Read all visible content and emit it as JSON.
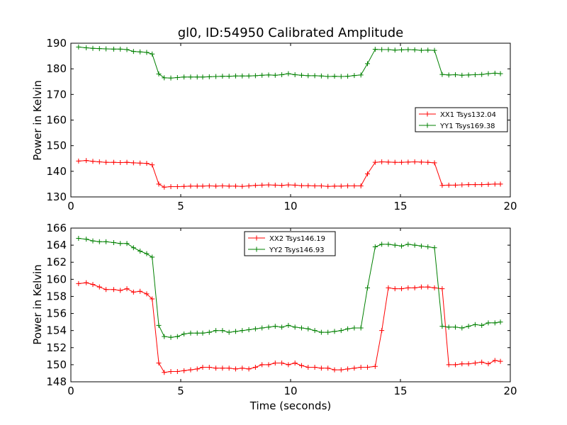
{
  "colors": {
    "xx": "#ff0000",
    "yy": "#008000"
  },
  "chart_data": [
    {
      "type": "line",
      "title": "gl0, ID:54950 Calibrated Amplitude",
      "xlabel": "",
      "ylabel": "Power in Kelvin",
      "xlim": [
        0,
        20
      ],
      "ylim": [
        130,
        190
      ],
      "xticks": [
        "0",
        "5",
        "10",
        "15",
        "20"
      ],
      "yticks": [
        "130",
        "140",
        "150",
        "160",
        "170",
        "180",
        "190"
      ],
      "grid": false,
      "legend_position": "center-right",
      "x": [
        0.35,
        0.7,
        1.0,
        1.3,
        1.6,
        1.95,
        2.25,
        2.55,
        2.85,
        3.15,
        3.45,
        3.7,
        4.0,
        4.25,
        4.55,
        4.85,
        5.15,
        5.45,
        5.75,
        6.0,
        6.3,
        6.6,
        6.9,
        7.2,
        7.5,
        7.8,
        8.1,
        8.4,
        8.7,
        9.0,
        9.3,
        9.6,
        9.9,
        10.2,
        10.5,
        10.8,
        11.1,
        11.4,
        11.7,
        12.0,
        12.3,
        12.6,
        12.9,
        13.2,
        13.5,
        13.85,
        14.15,
        14.45,
        14.75,
        15.05,
        15.35,
        15.65,
        15.95,
        16.25,
        16.55,
        16.9,
        17.2,
        17.5,
        17.8,
        18.1,
        18.4,
        18.7,
        19.0,
        19.3,
        19.55
      ],
      "series": [
        {
          "name": "XX1 Tsys132.04",
          "color": "#ff0000",
          "values": [
            144.0,
            144.2,
            143.9,
            143.7,
            143.5,
            143.5,
            143.4,
            143.5,
            143.3,
            143.2,
            143.1,
            142.5,
            135.0,
            133.8,
            134.0,
            134.0,
            134.1,
            134.2,
            134.2,
            134.2,
            134.3,
            134.2,
            134.3,
            134.2,
            134.2,
            134.1,
            134.3,
            134.5,
            134.6,
            134.7,
            134.6,
            134.5,
            134.7,
            134.6,
            134.4,
            134.4,
            134.3,
            134.3,
            134.1,
            134.2,
            134.2,
            134.3,
            134.3,
            134.3,
            139.0,
            143.5,
            143.7,
            143.6,
            143.5,
            143.5,
            143.6,
            143.7,
            143.6,
            143.5,
            143.3,
            134.5,
            134.6,
            134.6,
            134.7,
            134.8,
            134.8,
            134.8,
            134.9,
            135.0,
            135.0
          ]
        },
        {
          "name": "YY1 Tsys169.38",
          "color": "#008000",
          "values": [
            188.5,
            188.2,
            188.0,
            187.9,
            187.8,
            187.7,
            187.7,
            187.5,
            186.8,
            186.6,
            186.4,
            185.8,
            178.0,
            176.5,
            176.4,
            176.6,
            176.8,
            176.8,
            176.8,
            176.8,
            176.9,
            177.0,
            177.1,
            177.1,
            177.2,
            177.2,
            177.2,
            177.3,
            177.5,
            177.6,
            177.5,
            177.7,
            178.1,
            177.7,
            177.5,
            177.3,
            177.3,
            177.2,
            177.0,
            177.1,
            177.0,
            177.1,
            177.4,
            177.6,
            182.0,
            187.6,
            187.5,
            187.5,
            187.3,
            187.4,
            187.5,
            187.4,
            187.2,
            187.3,
            187.2,
            177.8,
            177.6,
            177.7,
            177.5,
            177.6,
            177.7,
            177.8,
            178.1,
            178.3,
            178.1
          ]
        }
      ]
    },
    {
      "type": "line",
      "title": "",
      "xlabel": "Time (seconds)",
      "ylabel": "Power in Kelvin",
      "xlim": [
        0,
        20
      ],
      "ylim": [
        148,
        166
      ],
      "xticks": [
        "0",
        "5",
        "10",
        "15",
        "20"
      ],
      "yticks": [
        "148",
        "150",
        "152",
        "154",
        "156",
        "158",
        "160",
        "162",
        "164",
        "166"
      ],
      "grid": false,
      "legend_position": "upper-center",
      "x": [
        0.35,
        0.7,
        1.0,
        1.3,
        1.6,
        1.95,
        2.25,
        2.55,
        2.85,
        3.15,
        3.45,
        3.7,
        4.0,
        4.25,
        4.55,
        4.85,
        5.15,
        5.45,
        5.75,
        6.0,
        6.3,
        6.6,
        6.9,
        7.2,
        7.5,
        7.8,
        8.1,
        8.4,
        8.7,
        9.0,
        9.3,
        9.6,
        9.9,
        10.2,
        10.5,
        10.8,
        11.1,
        11.4,
        11.7,
        12.0,
        12.3,
        12.6,
        12.9,
        13.2,
        13.5,
        13.85,
        14.15,
        14.45,
        14.75,
        15.05,
        15.35,
        15.65,
        15.95,
        16.25,
        16.55,
        16.9,
        17.2,
        17.5,
        17.8,
        18.1,
        18.4,
        18.7,
        19.0,
        19.3,
        19.55
      ],
      "series": [
        {
          "name": "XX2 Tsys146.19",
          "color": "#ff0000",
          "values": [
            159.5,
            159.6,
            159.4,
            159.1,
            158.8,
            158.8,
            158.7,
            158.9,
            158.5,
            158.6,
            158.3,
            157.7,
            150.2,
            149.1,
            149.2,
            149.2,
            149.3,
            149.4,
            149.5,
            149.7,
            149.7,
            149.6,
            149.6,
            149.6,
            149.5,
            149.6,
            149.5,
            149.7,
            150.0,
            150.0,
            150.2,
            150.2,
            150.0,
            150.2,
            149.9,
            149.7,
            149.7,
            149.6,
            149.6,
            149.4,
            149.4,
            149.5,
            149.6,
            149.7,
            149.7,
            149.8,
            154.0,
            159.0,
            158.9,
            158.9,
            159.0,
            159.0,
            159.1,
            159.1,
            159.0,
            158.9,
            150.0,
            150.0,
            150.1,
            150.1,
            150.2,
            150.3,
            150.1,
            150.5,
            150.4
          ],
          "values_note": ""
        },
        {
          "name": "YY2 Tsys146.93",
          "color": "#008000",
          "values": [
            164.8,
            164.7,
            164.5,
            164.4,
            164.4,
            164.3,
            164.2,
            164.2,
            163.7,
            163.3,
            163.0,
            162.6,
            154.6,
            153.3,
            153.2,
            153.3,
            153.6,
            153.7,
            153.7,
            153.7,
            153.8,
            154.0,
            154.0,
            153.8,
            153.9,
            154.0,
            154.1,
            154.2,
            154.3,
            154.4,
            154.5,
            154.4,
            154.6,
            154.4,
            154.3,
            154.2,
            154.0,
            153.8,
            153.8,
            153.9,
            154.0,
            154.2,
            154.3,
            154.3,
            159.0,
            163.8,
            164.1,
            164.1,
            164.0,
            163.9,
            164.1,
            164.0,
            163.9,
            163.8,
            163.7,
            154.5,
            154.4,
            154.4,
            154.3,
            154.5,
            154.7,
            154.6,
            154.9,
            154.9,
            155.0
          ]
        }
      ]
    }
  ]
}
